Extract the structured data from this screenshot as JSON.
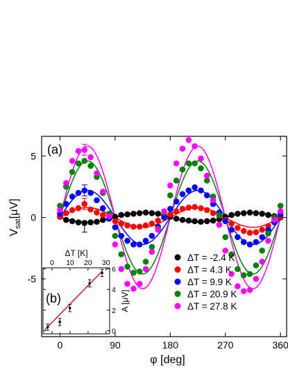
{
  "chart_data": {
    "main": {
      "type": "scatter",
      "panel_label": "(a)",
      "xlabel": "φ [deg]",
      "ylabel_main": "V",
      "ylabel_sub": "sat",
      "ylabel_unit": "[μV]",
      "xlim": [
        -30,
        370
      ],
      "ylim": [
        -9.7,
        6.6
      ],
      "xticks": [
        0,
        90,
        180,
        270,
        360
      ],
      "xtick_labels": [
        "0",
        "90",
        "180",
        "270",
        "360"
      ],
      "yticks": [
        -5,
        0,
        5
      ],
      "ytick_labels": [
        "-5",
        "0",
        "5"
      ],
      "legend_position": "bottom-right",
      "series": [
        {
          "name": "ΔT = -2.4 K",
          "color": "#000000",
          "amplitude": -0.4,
          "x": [
            0,
            10,
            20,
            30,
            40,
            50,
            60,
            70,
            80,
            90,
            100,
            110,
            120,
            130,
            140,
            150,
            160,
            170,
            180,
            190,
            200,
            210,
            220,
            230,
            240,
            250,
            260,
            270,
            280,
            290,
            300,
            310,
            320,
            330,
            340,
            350,
            360
          ],
          "y": [
            0.05,
            -0.2,
            -0.3,
            -0.4,
            -0.45,
            -0.4,
            -0.35,
            -0.2,
            -0.1,
            0.05,
            0.2,
            0.25,
            0.3,
            0.35,
            0.4,
            0.35,
            0.3,
            0.15,
            0.05,
            -0.1,
            -0.2,
            -0.25,
            -0.3,
            -0.35,
            -0.3,
            -0.25,
            -0.15,
            0.05,
            0.2,
            0.3,
            0.35,
            0.4,
            0.35,
            0.3,
            0.2,
            0.1,
            0.0
          ],
          "errorbars": [
            {
              "x": 40,
              "y": -0.75,
              "err": 0.45
            }
          ]
        },
        {
          "name": "ΔT = 4.3 K",
          "color": "#ff0000",
          "amplitude": 0.8,
          "x": [
            0,
            10,
            20,
            30,
            40,
            50,
            60,
            70,
            80,
            90,
            100,
            110,
            120,
            130,
            140,
            150,
            160,
            170,
            180,
            190,
            200,
            210,
            220,
            230,
            240,
            250,
            260,
            270,
            280,
            290,
            300,
            310,
            320,
            330,
            340,
            350,
            360
          ],
          "y": [
            0.05,
            0.35,
            0.6,
            0.75,
            1.1,
            0.65,
            0.4,
            0.2,
            -0.05,
            -0.3,
            -0.5,
            -0.65,
            -0.75,
            -0.75,
            -0.65,
            -0.5,
            -0.25,
            0.05,
            0.25,
            0.5,
            0.7,
            0.8,
            0.85,
            0.75,
            0.6,
            0.35,
            0.15,
            -0.2,
            -0.5,
            -0.85,
            -1.1,
            -1.25,
            -1.2,
            -1.0,
            -0.7,
            -0.35,
            0.05
          ],
          "errorbars": [
            {
              "x": 40,
              "y": 1.1,
              "err": 0.45
            }
          ]
        },
        {
          "name": "ΔT = 9.9 K",
          "color": "#0000ff",
          "amplitude": 2.2,
          "x": [
            0,
            10,
            20,
            30,
            40,
            50,
            60,
            70,
            80,
            90,
            100,
            110,
            120,
            130,
            140,
            150,
            160,
            170,
            180,
            190,
            200,
            210,
            220,
            230,
            240,
            250,
            260,
            270,
            280,
            290,
            300,
            310,
            320,
            330,
            340,
            350,
            360
          ],
          "y": [
            0.3,
            1.1,
            1.7,
            2.0,
            2.2,
            2.0,
            1.4,
            0.75,
            -0.1,
            -0.8,
            -1.5,
            -1.9,
            -2.2,
            -2.2,
            -1.9,
            -1.5,
            -0.75,
            0.0,
            0.7,
            1.3,
            1.9,
            2.2,
            2.45,
            2.2,
            1.8,
            1.1,
            0.4,
            -0.3,
            -1.0,
            -1.6,
            -2.0,
            -2.2,
            -2.0,
            -1.6,
            -1.0,
            -0.4,
            0.25
          ],
          "errorbars": [
            {
              "x": 40,
              "y": 2.2,
              "err": 0.45
            }
          ]
        },
        {
          "name": "ΔT = 20.9 K",
          "color": "#008000",
          "amplitude": 4.6,
          "x": [
            0,
            10,
            20,
            30,
            40,
            50,
            60,
            70,
            80,
            90,
            100,
            110,
            120,
            130,
            140,
            150,
            160,
            170,
            180,
            190,
            200,
            210,
            220,
            230,
            240,
            250,
            260,
            270,
            280,
            290,
            300,
            310,
            320,
            330,
            340,
            350,
            360
          ],
          "y": [
            0.95,
            2.5,
            3.7,
            4.4,
            4.6,
            4.2,
            3.3,
            2.0,
            0.3,
            -1.5,
            -3.0,
            -4.0,
            -4.5,
            -4.4,
            -3.6,
            -2.4,
            -0.9,
            0.4,
            1.8,
            3.0,
            3.9,
            4.4,
            4.4,
            4.0,
            3.0,
            1.7,
            0.2,
            -1.6,
            -3.0,
            -4.2,
            -4.7,
            -4.6,
            -3.9,
            -2.7,
            -1.3,
            0.0,
            0.95
          ],
          "errorbars": []
        },
        {
          "name": "ΔT = 27.8 K",
          "color": "#ff00ff",
          "amplitude": 5.8,
          "x": [
            0,
            10,
            20,
            30,
            40,
            50,
            60,
            70,
            80,
            90,
            100,
            110,
            120,
            130,
            140,
            150,
            160,
            170,
            180,
            190,
            200,
            210,
            220,
            230,
            240,
            250,
            260,
            270,
            280,
            290,
            300,
            310,
            320,
            330,
            340,
            350,
            360
          ],
          "y": [
            0.6,
            2.8,
            4.6,
            5.4,
            5.5,
            4.9,
            3.6,
            2.1,
            0.1,
            -2.2,
            -4.2,
            -5.4,
            -5.8,
            -5.4,
            -4.2,
            -2.8,
            -1.0,
            0.5,
            2.6,
            4.4,
            5.6,
            6.3,
            5.8,
            4.8,
            3.4,
            1.4,
            -0.6,
            -2.7,
            -4.6,
            -5.6,
            -6.0,
            -5.9,
            -5.0,
            -3.6,
            -1.9,
            -0.2,
            0.5
          ],
          "errorbars": [
            {
              "x": 40,
              "y": 5.5,
              "err": 0.45
            }
          ]
        }
      ]
    },
    "inset": {
      "type": "scatter",
      "panel_label": "(b)",
      "xlabel": "ΔT [K]",
      "ylabel": "A [μV]",
      "xlim": [
        -5,
        32
      ],
      "ylim": [
        -0.3,
        6.1
      ],
      "xticks": [
        0,
        10,
        20,
        30
      ],
      "xtick_labels": [
        "0",
        "10",
        "20",
        "30"
      ],
      "yticks": [
        0,
        2,
        4,
        6
      ],
      "ytick_labels": [
        "0",
        "2",
        "4",
        "6"
      ],
      "points": [
        {
          "x": -2.4,
          "y": 0.35,
          "err": 0.3
        },
        {
          "x": 4.3,
          "y": 0.85,
          "err": 0.35
        },
        {
          "x": 9.9,
          "y": 2.2,
          "err": 0.35
        },
        {
          "x": 20.9,
          "y": 4.6,
          "err": 0.35
        },
        {
          "x": 27.8,
          "y": 5.6,
          "err": 0.35
        }
      ],
      "fit_line": {
        "x": [
          -4,
          28
        ],
        "y": [
          0.1,
          5.8
        ],
        "color": "#cc0000"
      }
    }
  }
}
